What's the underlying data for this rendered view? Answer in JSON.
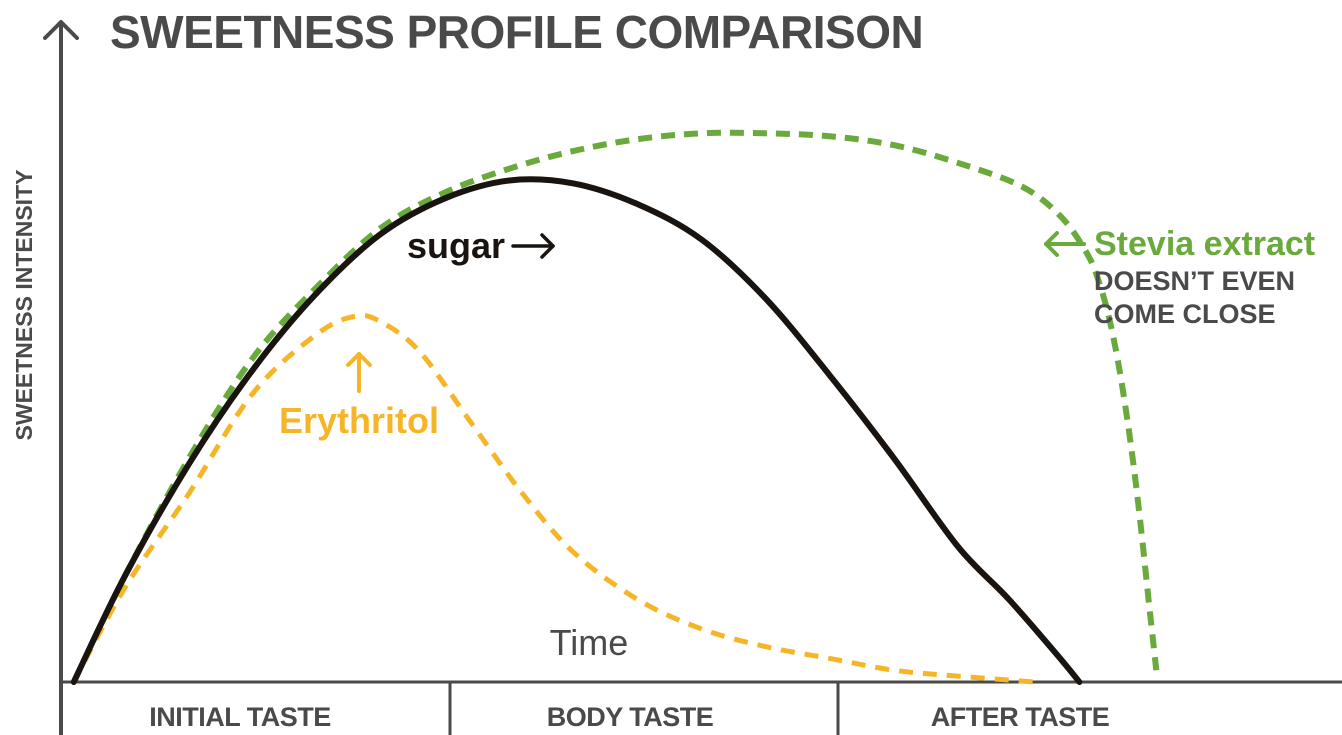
{
  "chart_data": {
    "type": "line",
    "title": "SWEETNESS PROFILE COMPARISON",
    "xlabel": "Time",
    "ylabel": "SWEETNESS INTENSITY",
    "x_sections": [
      "INITIAL TASTE",
      "BODY TASTE",
      "AFTER TASTE"
    ],
    "xlim": [
      0,
      100
    ],
    "ylim": [
      0,
      100
    ],
    "grid": false,
    "series": [
      {
        "name": "sugar",
        "color": "#1a1410",
        "style": "solid",
        "x": [
          1,
          5,
          10,
          15,
          20,
          25,
          30,
          35,
          40,
          45,
          50,
          55,
          60,
          65,
          70,
          74,
          78,
          79.5
        ],
        "y": [
          0,
          18,
          37,
          53,
          66,
          76,
          82,
          85,
          84.5,
          81,
          75,
          65,
          52,
          38,
          23,
          14,
          4,
          0
        ]
      },
      {
        "name": "Erythritol",
        "color": "#f6b526",
        "style": "dashed",
        "x": [
          1,
          5,
          10,
          15,
          20,
          23,
          25,
          28,
          32,
          36,
          40,
          45,
          50,
          55,
          60,
          65,
          70,
          76
        ],
        "y": [
          0,
          16,
          32,
          49,
          59,
          62,
          61,
          56,
          44,
          32,
          22,
          14,
          9,
          6,
          4,
          2,
          1,
          0
        ]
      },
      {
        "name": "Stevia extract",
        "color": "#6aaa3c",
        "style": "dashed",
        "x": [
          1,
          5,
          10,
          15,
          20,
          25,
          30,
          35,
          40,
          45,
          50,
          55,
          60,
          65,
          70,
          75,
          78,
          80,
          81,
          82,
          83,
          84,
          85,
          85.5
        ],
        "y": [
          0,
          18,
          38,
          55,
          67,
          77,
          83,
          87,
          90,
          92,
          93,
          93,
          92.5,
          91,
          88,
          84,
          79,
          73,
          68,
          60,
          48,
          32,
          12,
          2
        ]
      }
    ],
    "annotations": [
      {
        "text": "sugar",
        "color": "#1a1410",
        "arrow": "right"
      },
      {
        "text": "Erythritol",
        "color": "#f6b526",
        "arrow": "up"
      },
      {
        "text": "Stevia extract",
        "color": "#6aaa3c",
        "arrow": "left"
      },
      {
        "text": "DOESN’T EVEN",
        "color": "#4a4a4a"
      },
      {
        "text": "COME CLOSE",
        "color": "#4a4a4a"
      }
    ],
    "axis_color": "#4a4a4a"
  }
}
